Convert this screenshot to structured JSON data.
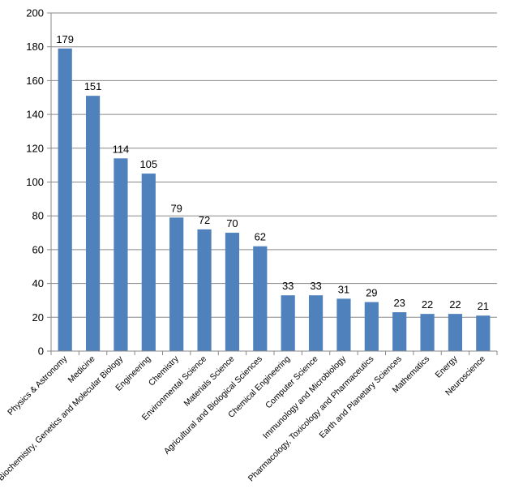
{
  "chart_data": {
    "type": "bar",
    "categories": [
      "Physics & Astronomy",
      "Medicine",
      "Biochemistry, Genetics and Molecular Biology",
      "Engineering",
      "Chemistry",
      "Environmental Science",
      "Materials Science",
      "Agricultural and Biological Sciences",
      "Chemical Engineering",
      "Computer Science",
      "Immunology and Microbiology",
      "Pharmacology, Toxicology and Pharmaceutics",
      "Earth and Planetary Sciences",
      "Mathematics",
      "Energy",
      "Neuroscience"
    ],
    "values": [
      179,
      151,
      114,
      105,
      79,
      72,
      70,
      62,
      33,
      33,
      31,
      29,
      23,
      22,
      22,
      21
    ],
    "title": "",
    "xlabel": "",
    "ylabel": "",
    "ylim": [
      0,
      200
    ],
    "yticks": [
      0,
      20,
      40,
      60,
      80,
      100,
      120,
      140,
      160,
      180,
      200
    ],
    "grid": true,
    "legend": "none",
    "bar_color": "#4F81BD"
  }
}
